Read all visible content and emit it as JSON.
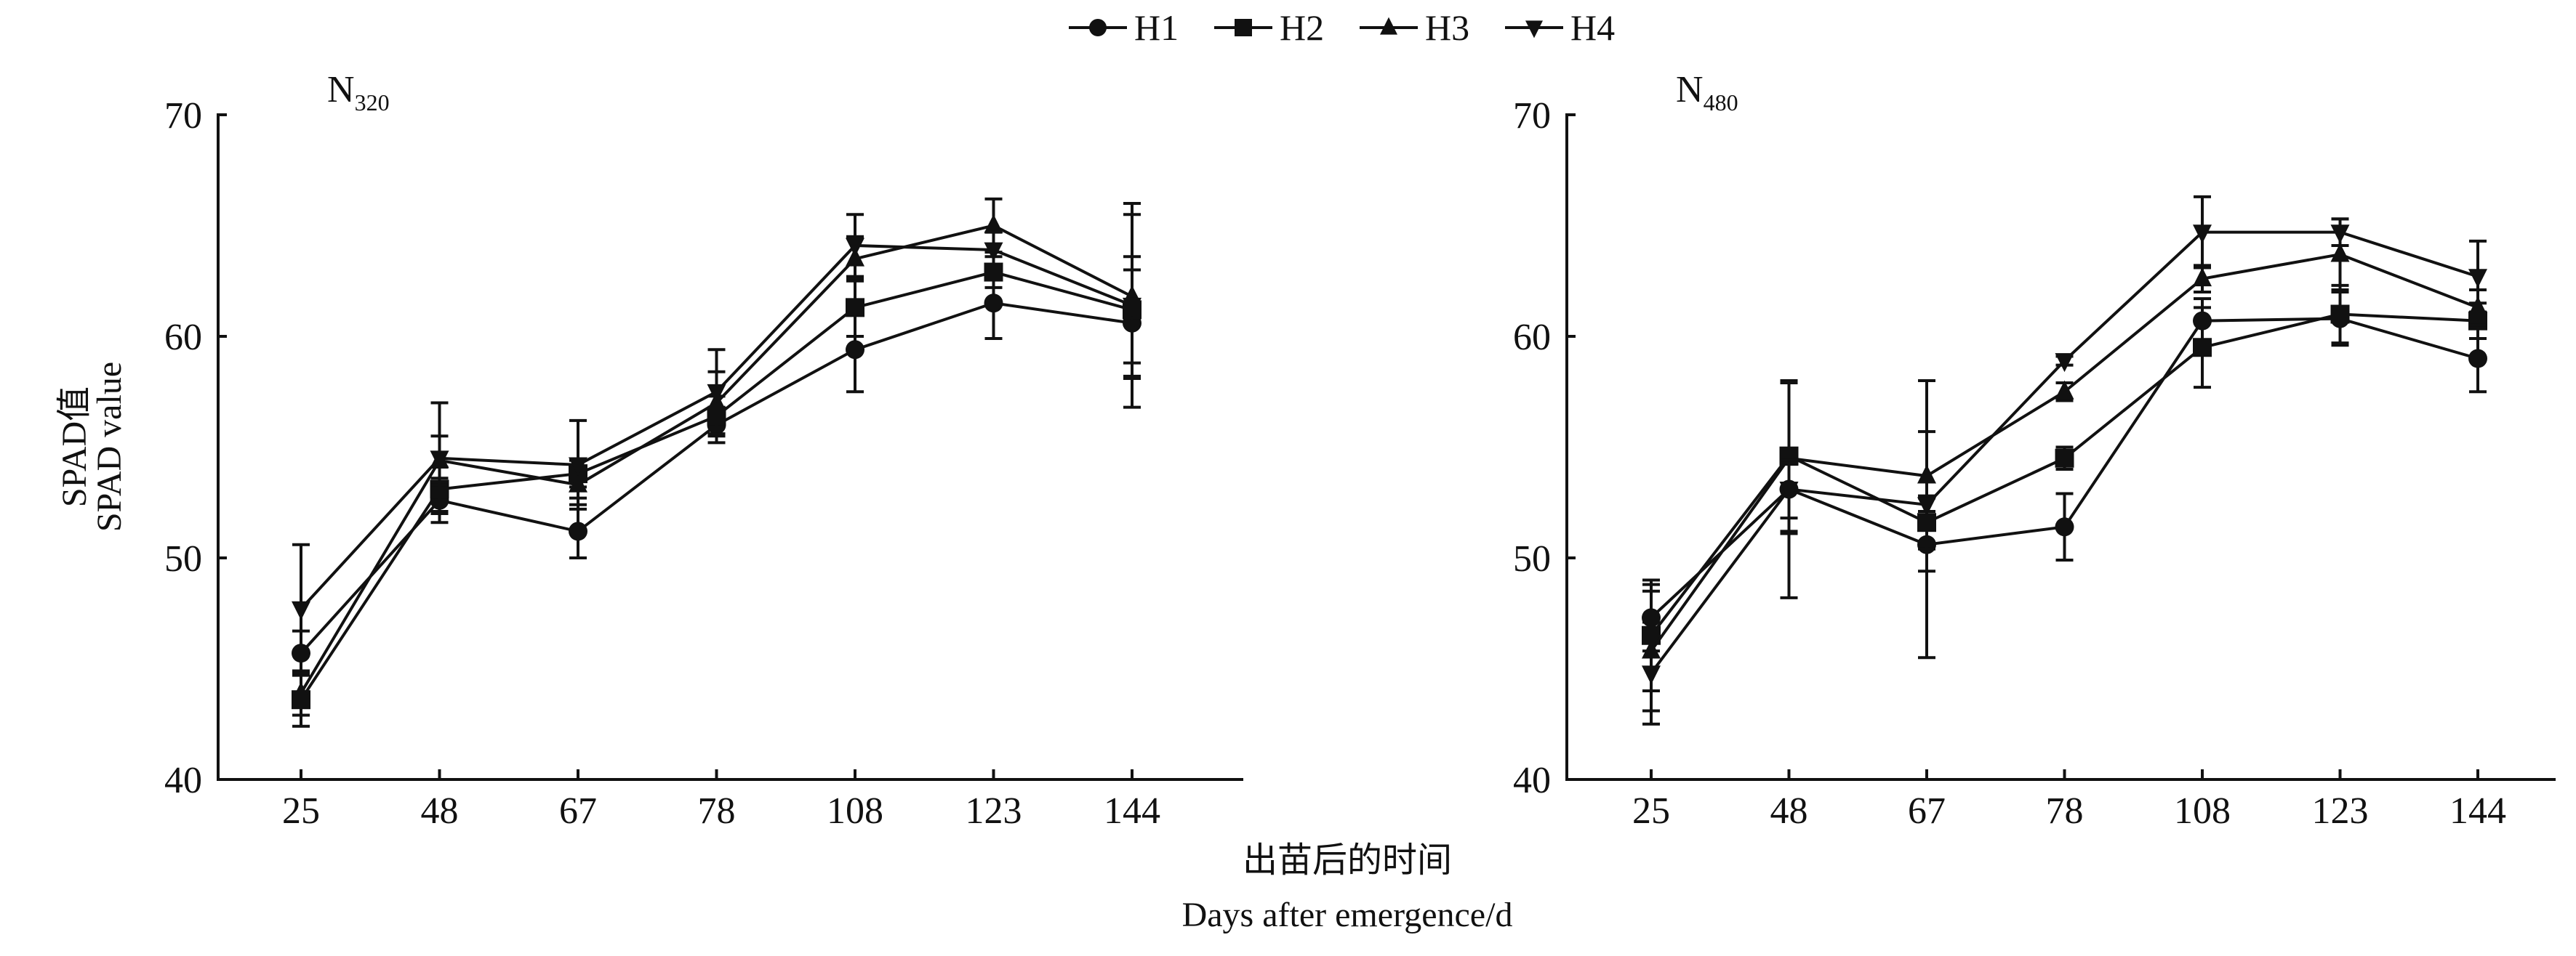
{
  "legend": {
    "entries": [
      "H1",
      "H2",
      "H3",
      "H4"
    ],
    "markers": [
      "circle",
      "square",
      "triangle-up",
      "triangle-down"
    ],
    "placement": "top-center"
  },
  "ylabel_cn": "SPAD值",
  "ylabel_en": "SPAD value",
  "xlabel_cn": "出苗后的时间",
  "xlabel_en": "Days after emergence/d",
  "chart_data": [
    {
      "type": "line",
      "title": "N",
      "title_sub": "320",
      "categories": [
        "25",
        "48",
        "67",
        "78",
        "108",
        "123",
        "144"
      ],
      "ylim": [
        40,
        70
      ],
      "yticks": [
        "40",
        "50",
        "60",
        "70"
      ],
      "series": [
        {
          "name": "H1",
          "values": [
            45.7,
            52.6,
            51.2,
            56.0,
            59.4,
            61.5,
            60.6
          ],
          "errors": [
            1.0,
            1.0,
            1.2,
            0.8,
            1.9,
            1.6,
            2.4
          ]
        },
        {
          "name": "H2",
          "values": [
            43.6,
            53.1,
            53.8,
            56.4,
            61.3,
            62.9,
            61.2
          ],
          "errors": [
            1.2,
            1.0,
            0.6,
            0.9,
            1.3,
            0.7,
            2.4
          ]
        },
        {
          "name": "H3",
          "values": [
            43.9,
            54.4,
            53.3,
            57.0,
            63.5,
            65.0,
            61.8
          ],
          "errors": [
            1.0,
            1.1,
            0.6,
            1.4,
            1.0,
            1.2,
            3.7
          ]
        },
        {
          "name": "H4",
          "values": [
            47.7,
            54.5,
            54.2,
            57.5,
            64.1,
            63.9,
            61.4
          ],
          "errors": [
            2.9,
            2.5,
            2.0,
            1.9,
            1.4,
            0.8,
            4.6
          ]
        }
      ]
    },
    {
      "type": "line",
      "title": "N",
      "title_sub": "480",
      "categories": [
        "25",
        "48",
        "67",
        "78",
        "108",
        "123",
        "144"
      ],
      "ylim": [
        40,
        70
      ],
      "yticks": [
        "40",
        "50",
        "60",
        "70"
      ],
      "series": [
        {
          "name": "H1",
          "values": [
            47.3,
            53.1,
            50.6,
            51.4,
            60.7,
            60.8,
            59.0
          ],
          "errors": [
            1.5,
            4.9,
            5.1,
            1.5,
            1.0,
            1.2,
            1.5
          ]
        },
        {
          "name": "H2",
          "values": [
            46.5,
            54.6,
            51.6,
            54.5,
            59.5,
            61.0,
            60.7
          ],
          "errors": [
            2.5,
            3.4,
            1.2,
            0.5,
            1.8,
            1.3,
            0.8
          ]
        },
        {
          "name": "H3",
          "values": [
            45.8,
            54.5,
            53.7,
            57.5,
            62.6,
            63.7,
            61.3
          ],
          "errors": [
            2.7,
            3.4,
            4.3,
            0.4,
            0.6,
            1.6,
            0.8
          ]
        },
        {
          "name": "H4",
          "values": [
            44.8,
            53.1,
            52.4,
            58.9,
            64.7,
            64.7,
            62.7
          ],
          "errors": [
            2.3,
            1.3,
            0.3,
            0.2,
            1.6,
            0.6,
            1.6
          ]
        }
      ]
    }
  ]
}
